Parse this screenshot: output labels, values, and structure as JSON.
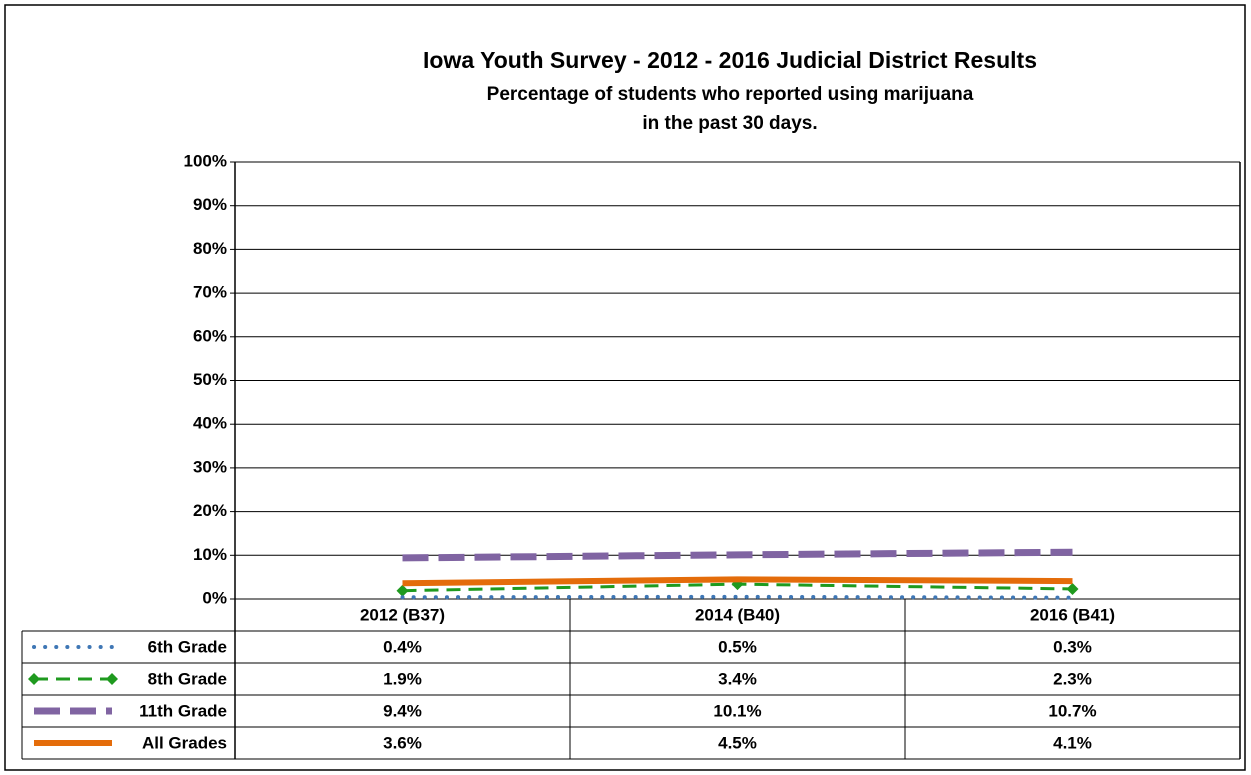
{
  "chart_data": {
    "type": "line",
    "title": "Iowa Youth Survey - 2012 - 2016 Judicial District Results",
    "subtitle": [
      "Percentage of students who reported using marijuana",
      "in the past 30 days."
    ],
    "categories": [
      "2012 (B37)",
      "2014 (B40)",
      "2016 (B41)"
    ],
    "series": [
      {
        "name": "6th Grade",
        "color": "#3f77b5",
        "style": "dotted",
        "values": [
          0.4,
          0.5,
          0.3
        ],
        "value_labels": [
          "0.4%",
          "0.5%",
          "0.3%"
        ]
      },
      {
        "name": "8th Grade",
        "color": "#1f9a1f",
        "style": "dashed",
        "marker": "diamond",
        "values": [
          1.9,
          3.4,
          2.3
        ],
        "value_labels": [
          "1.9%",
          "3.4%",
          "2.3%"
        ]
      },
      {
        "name": "11th Grade",
        "color": "#8064a2",
        "style": "long-dash",
        "values": [
          9.4,
          10.1,
          10.7
        ],
        "value_labels": [
          "9.4%",
          "10.1%",
          "10.7%"
        ]
      },
      {
        "name": "All Grades",
        "color": "#e46c0a",
        "style": "solid",
        "values": [
          3.6,
          4.5,
          4.1
        ],
        "value_labels": [
          "3.6%",
          "4.5%",
          "4.1%"
        ]
      }
    ],
    "ylim": [
      0,
      100
    ],
    "yticks": [
      {
        "value": 0,
        "label": "0%"
      },
      {
        "value": 10,
        "label": "10%"
      },
      {
        "value": 20,
        "label": "20%"
      },
      {
        "value": 30,
        "label": "30%"
      },
      {
        "value": 40,
        "label": "40%"
      },
      {
        "value": 50,
        "label": "50%"
      },
      {
        "value": 60,
        "label": "60%"
      },
      {
        "value": 70,
        "label": "70%"
      },
      {
        "value": 80,
        "label": "80%"
      },
      {
        "value": 90,
        "label": "90%"
      },
      {
        "value": 100,
        "label": "100%"
      }
    ],
    "grid": true
  }
}
